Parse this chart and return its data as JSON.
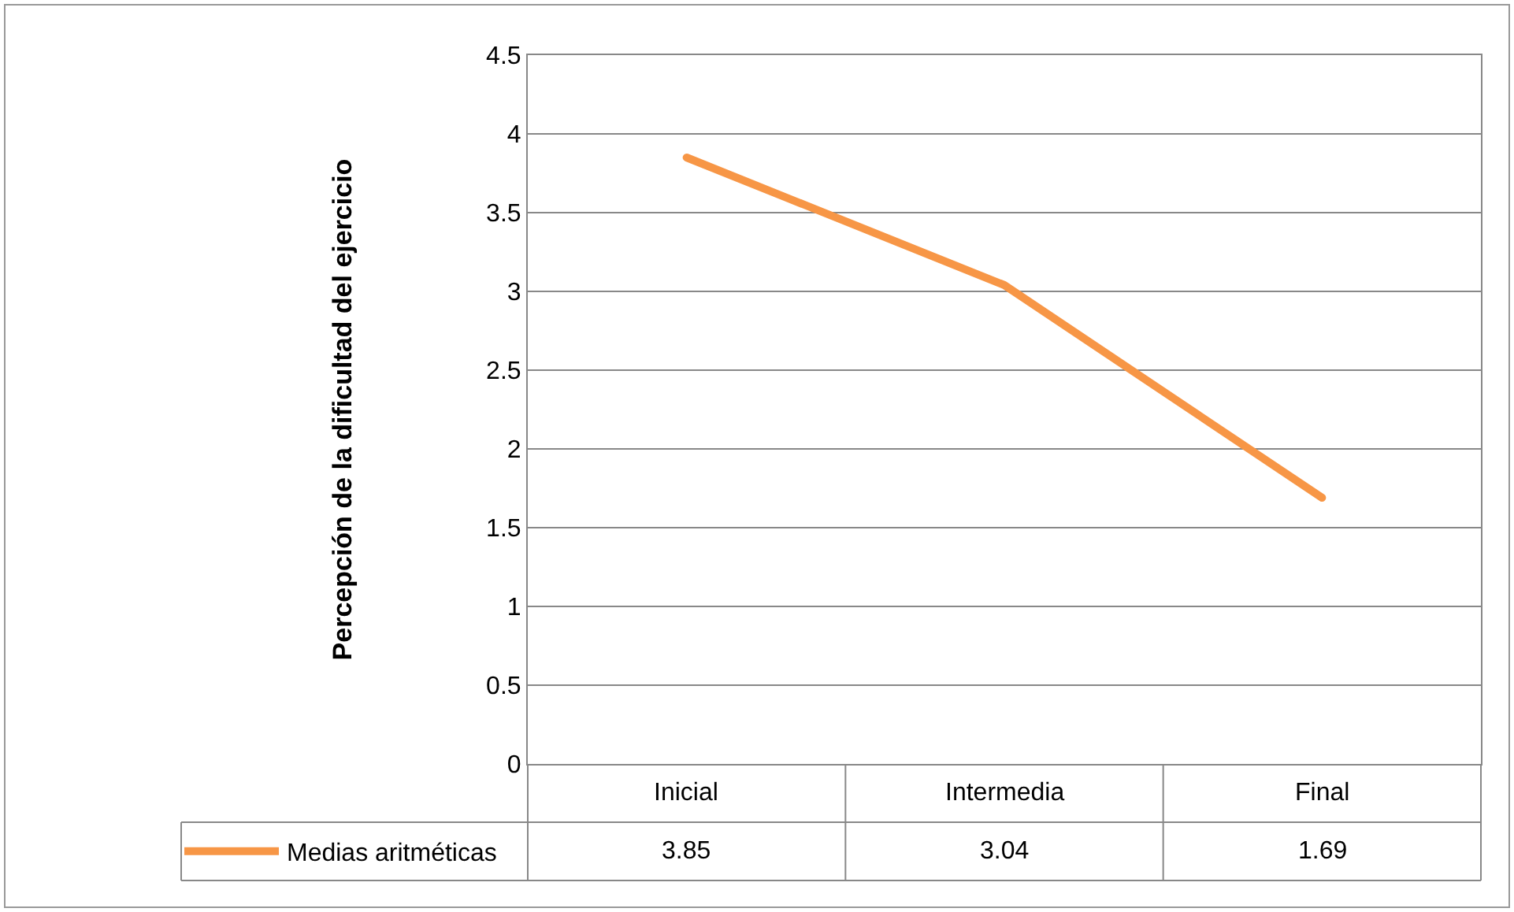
{
  "chart_data": {
    "type": "line",
    "ylabel": "Percepción de la dificultad del ejercicio",
    "categories": [
      "Inicial",
      "Intermedia",
      "Final"
    ],
    "series": [
      {
        "name": "Medias aritméticas",
        "color": "#f79646",
        "values": [
          3.85,
          3.04,
          1.69
        ]
      }
    ],
    "ylim": [
      0,
      4.5
    ],
    "yticks": [
      0,
      0.5,
      1,
      1.5,
      2,
      2.5,
      3,
      3.5,
      4,
      4.5
    ],
    "grid": "y",
    "legend": "bottom",
    "data_labels": true,
    "marker": "none",
    "line_style": "solid"
  }
}
